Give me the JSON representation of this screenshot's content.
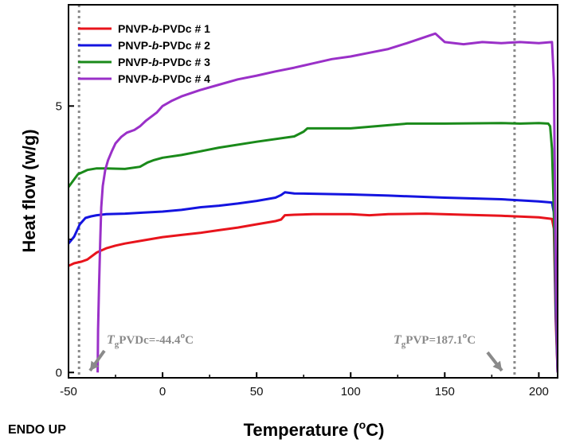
{
  "chart_data": {
    "type": "line",
    "xlabel": "Temperature (",
    "xlabel_sup": "o",
    "xlabel_end": "C)",
    "ylabel": "Heat flow (w/g)",
    "xlim": [
      -50,
      210
    ],
    "ylim": [
      -0.1,
      6.9
    ],
    "x_ticks": [
      -50,
      0,
      50,
      100,
      150,
      200
    ],
    "y_ticks": [
      0,
      5
    ],
    "grid": false,
    "legend_position": "top-left",
    "series": [
      {
        "name": "PNVP-b-PVDc # 1",
        "name_parts": [
          "PNVP-",
          "b",
          "-PVDc # 1"
        ],
        "color": "#e8141c",
        "x": [
          -50,
          -47,
          -43,
          -40,
          -35,
          -30,
          -25,
          -20,
          -10,
          0,
          10,
          20,
          30,
          40,
          50,
          60,
          63,
          65,
          70,
          80,
          100,
          110,
          120,
          140,
          160,
          180,
          200,
          207,
          208,
          209,
          210
        ],
        "y": [
          2.0,
          2.05,
          2.08,
          2.12,
          2.25,
          2.33,
          2.38,
          2.42,
          2.48,
          2.54,
          2.58,
          2.62,
          2.67,
          2.72,
          2.78,
          2.84,
          2.87,
          2.95,
          2.96,
          2.97,
          2.97,
          2.95,
          2.97,
          2.98,
          2.96,
          2.94,
          2.91,
          2.88,
          2.7,
          1.0,
          0.0
        ]
      },
      {
        "name": "PNVP-b-PVDc # 2",
        "name_parts": [
          "PNVP-",
          "b",
          "-PVDc # 2"
        ],
        "color": "#1414e0",
        "x": [
          -50,
          -47,
          -44,
          -41,
          -38,
          -35,
          -30,
          -20,
          -10,
          0,
          10,
          20,
          30,
          40,
          50,
          60,
          63,
          65,
          70,
          100,
          120,
          150,
          180,
          200,
          207,
          208,
          209,
          210
        ],
        "y": [
          2.42,
          2.55,
          2.78,
          2.9,
          2.93,
          2.95,
          2.97,
          2.98,
          3.0,
          3.02,
          3.05,
          3.1,
          3.13,
          3.17,
          3.22,
          3.28,
          3.33,
          3.38,
          3.36,
          3.34,
          3.32,
          3.28,
          3.25,
          3.21,
          3.19,
          3.0,
          1.2,
          0.0
        ]
      },
      {
        "name": "PNVP-b-PVDc # 3",
        "name_parts": [
          "PNVP-",
          "b",
          "-PVDc # 3"
        ],
        "color": "#1a8a1a",
        "x": [
          -50,
          -45,
          -40,
          -35,
          -30,
          -20,
          -12,
          -8,
          -5,
          0,
          10,
          20,
          30,
          50,
          70,
          75,
          77,
          100,
          120,
          130,
          150,
          180,
          190,
          200,
          205,
          206,
          207,
          208,
          209,
          210
        ],
        "y": [
          3.48,
          3.72,
          3.8,
          3.83,
          3.83,
          3.82,
          3.86,
          3.94,
          3.98,
          4.03,
          4.08,
          4.15,
          4.22,
          4.33,
          4.43,
          4.52,
          4.58,
          4.58,
          4.64,
          4.67,
          4.67,
          4.68,
          4.67,
          4.68,
          4.67,
          4.62,
          4.2,
          3.0,
          1.5,
          0.0
        ]
      },
      {
        "name": "PNVP-b-PVDc # 4",
        "name_parts": [
          "PNVP-",
          "b",
          "-PVDc # 4"
        ],
        "color": "#9a30c8",
        "x": [
          -34.5,
          -34.3,
          -33.8,
          -33.2,
          -32.6,
          -31.8,
          -30.5,
          -29,
          -27,
          -25,
          -22,
          -19,
          -15,
          -12,
          -9,
          -6,
          -3,
          0,
          5,
          10,
          20,
          30,
          40,
          50,
          60,
          70,
          80,
          90,
          100,
          110,
          120,
          130,
          140,
          145,
          150,
          160,
          170,
          180,
          190,
          200,
          207,
          208,
          209,
          210
        ],
        "y": [
          0.0,
          0.8,
          1.6,
          2.4,
          3.1,
          3.5,
          3.8,
          3.98,
          4.15,
          4.3,
          4.42,
          4.5,
          4.55,
          4.62,
          4.72,
          4.8,
          4.88,
          5.0,
          5.1,
          5.18,
          5.3,
          5.4,
          5.5,
          5.57,
          5.65,
          5.72,
          5.8,
          5.88,
          5.93,
          6.0,
          6.07,
          6.18,
          6.3,
          6.36,
          6.2,
          6.16,
          6.2,
          6.18,
          6.2,
          6.18,
          6.2,
          5.5,
          2.0,
          0.0
        ]
      }
    ],
    "annotations": {
      "vlines": [
        -44.4,
        187.1
      ],
      "left": {
        "main": "T",
        "sub": "g",
        "rest": "PVDc=-44.4",
        "sup": "o",
        "end": "C"
      },
      "right": {
        "main": "T",
        "sub": "g",
        "rest": "PVP=187.1",
        "sup": "o",
        "end": "C"
      }
    }
  },
  "endo_label": "ENDO UP"
}
